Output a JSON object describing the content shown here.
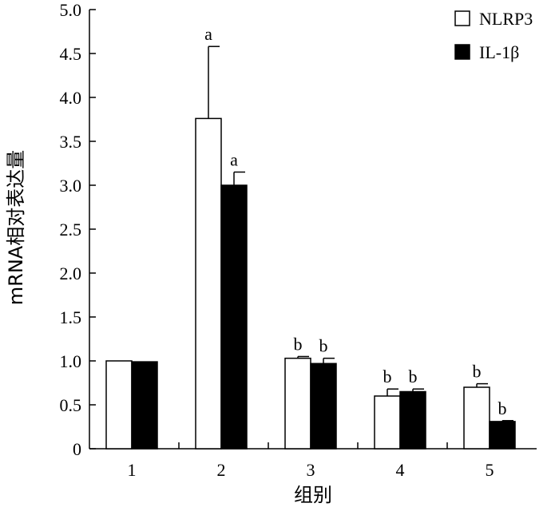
{
  "chart_data": {
    "type": "bar",
    "xlabel": "组别",
    "ylabel": "mRNA相对表达量",
    "ylim": [
      0,
      5.0
    ],
    "yticks": [
      "0",
      "0.5",
      "1.0",
      "1.5",
      "2.0",
      "2.5",
      "3.0",
      "3.5",
      "4.0",
      "4.5",
      "5.0"
    ],
    "ytick_values": [
      0,
      0.5,
      1.0,
      1.5,
      2.0,
      2.5,
      3.0,
      3.5,
      4.0,
      4.5,
      5.0
    ],
    "categories": [
      "1",
      "2",
      "3",
      "4",
      "5"
    ],
    "legend_position": "top-right",
    "grid": false,
    "series": [
      {
        "name": "NLRP3",
        "color": "#ffffff",
        "values": [
          1.0,
          3.76,
          1.03,
          0.6,
          0.7
        ],
        "errors": [
          0.0,
          0.82,
          0.02,
          0.08,
          0.04
        ],
        "labels": [
          "",
          "a",
          "b",
          "b",
          "b"
        ]
      },
      {
        "name": "IL-1β",
        "color": "#000000",
        "values": [
          0.99,
          3.0,
          0.97,
          0.65,
          0.31
        ],
        "errors": [
          0.0,
          0.15,
          0.06,
          0.03,
          0.01
        ],
        "labels": [
          "",
          "a",
          "b",
          "b",
          "b"
        ]
      }
    ]
  }
}
